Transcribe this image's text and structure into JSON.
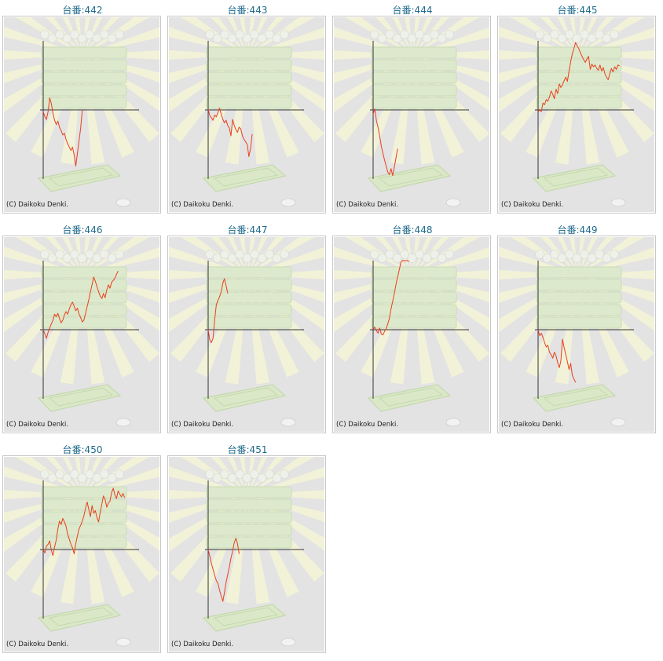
{
  "colors": {
    "title_link": "#1f6a8c",
    "line": "#e8401c",
    "axis": "#333333",
    "panel_bg": "#e3e3e3",
    "frame_border": "#c7c7c7"
  },
  "copyright": "(C) Daikoku Denki.",
  "chart_data": [
    {
      "type": "line",
      "title": "台番:442",
      "x": [
        0,
        1,
        2,
        3,
        4,
        5,
        6,
        7,
        8,
        9,
        10,
        11,
        12,
        13,
        14,
        15,
        16,
        17,
        18,
        19,
        20,
        21,
        22,
        23,
        24
      ],
      "y": [
        -200,
        -800,
        -1100,
        -200,
        1400,
        700,
        -400,
        -1200,
        -1700,
        -1300,
        -2000,
        -2400,
        -2900,
        -2700,
        -3400,
        -3900,
        -4300,
        -4700,
        -4300,
        -5200,
        -6500,
        -5000,
        -3600,
        -2100,
        0
      ],
      "ylim": [
        -8000,
        8000
      ],
      "grid": false
    },
    {
      "type": "line",
      "title": "台番:443",
      "x": [
        0,
        1,
        2,
        3,
        4,
        5,
        6,
        7,
        8,
        9,
        10,
        11,
        12,
        13,
        14,
        15,
        16,
        17,
        18,
        19,
        20,
        21,
        22,
        23,
        24,
        25,
        26,
        27
      ],
      "y": [
        100,
        -700,
        -900,
        -1200,
        -600,
        -800,
        -300,
        200,
        -500,
        -1100,
        -1500,
        -1200,
        -1800,
        -2100,
        -3000,
        -1100,
        -1800,
        -2300,
        -2600,
        -2000,
        -2200,
        -3000,
        -3400,
        -3700,
        -4000,
        -5400,
        -4500,
        -2800
      ],
      "ylim": [
        -8000,
        8000
      ],
      "grid": false
    },
    {
      "type": "line",
      "title": "台番:444",
      "x": [
        0,
        1,
        2,
        3,
        4,
        5,
        6,
        7,
        8,
        9,
        10,
        11,
        12,
        13,
        14,
        15
      ],
      "y": [
        -500,
        100,
        -1200,
        -2000,
        -3000,
        -4200,
        -5000,
        -5800,
        -6500,
        -7200,
        -7500,
        -6800,
        -7600,
        -6600,
        -5600,
        -4500
      ],
      "ylim": [
        -8000,
        8000
      ],
      "grid": false
    },
    {
      "type": "line",
      "title": "台番:445",
      "x": [
        0,
        1,
        2,
        3,
        4,
        5,
        6,
        7,
        8,
        9,
        10,
        11,
        12,
        13,
        14,
        15,
        16,
        17,
        18,
        19,
        20,
        21,
        22,
        23,
        24,
        25,
        26,
        27,
        28,
        29,
        30,
        31,
        32,
        33,
        34,
        35,
        36,
        37,
        38,
        39,
        40,
        41,
        42,
        43,
        44,
        45,
        46,
        47,
        48,
        49,
        50
      ],
      "y": [
        -200,
        0,
        -200,
        800,
        600,
        1200,
        1000,
        1500,
        2200,
        1800,
        1300,
        2400,
        1900,
        3000,
        2600,
        2900,
        3400,
        3800,
        3300,
        4500,
        5600,
        6500,
        7100,
        7800,
        7400,
        7100,
        6600,
        6200,
        5800,
        5500,
        5900,
        6200,
        4700,
        5300,
        5000,
        5200,
        4800,
        4600,
        5200,
        4500,
        4900,
        4200,
        3800,
        3500,
        4200,
        4800,
        4400,
        5000,
        4700,
        5200,
        5100
      ],
      "ylim": [
        -8000,
        8000
      ],
      "grid": false
    },
    {
      "type": "line",
      "title": "台番:446",
      "x": [
        0,
        1,
        2,
        3,
        4,
        5,
        6,
        7,
        8,
        9,
        10,
        11,
        12,
        13,
        14,
        15,
        16,
        17,
        18,
        19,
        20,
        21,
        22,
        23,
        24,
        25,
        26,
        27,
        28,
        29,
        30,
        31,
        32,
        33,
        34,
        35,
        36,
        37,
        38,
        39,
        40,
        41,
        42,
        43,
        44,
        45,
        46
      ],
      "y": [
        0,
        -500,
        -1000,
        -300,
        200,
        700,
        1100,
        1800,
        1500,
        1900,
        1300,
        800,
        1100,
        1700,
        2100,
        1800,
        2400,
        2900,
        3200,
        2700,
        2200,
        2500,
        1800,
        1400,
        900,
        1100,
        1900,
        2700,
        3500,
        4400,
        5200,
        6100,
        5600,
        5000,
        4400,
        3900,
        3600,
        4200,
        3700,
        4600,
        5200,
        4800,
        5500,
        5700,
        6000,
        6400,
        6800
      ],
      "ylim": [
        -8000,
        8000
      ],
      "grid": false
    },
    {
      "type": "line",
      "title": "台番:447",
      "x": [
        0,
        1,
        2,
        3,
        4,
        5,
        6,
        7,
        8,
        9,
        10,
        11,
        12
      ],
      "y": [
        0,
        -1200,
        -1500,
        -1000,
        1200,
        2900,
        3400,
        3800,
        4400,
        5400,
        5900,
        5100,
        4200
      ],
      "ylim": [
        -8000,
        8000
      ],
      "grid": false
    },
    {
      "type": "line",
      "title": "台番:448",
      "x": [
        0,
        1,
        2,
        3,
        4,
        5,
        6,
        7,
        8,
        9,
        10,
        11,
        12,
        13,
        14,
        15,
        16,
        17,
        18,
        19,
        20,
        21,
        22
      ],
      "y": [
        0,
        300,
        -100,
        -400,
        200,
        -500,
        -600,
        -200,
        100,
        700,
        1300,
        2400,
        3300,
        4200,
        5200,
        6100,
        6900,
        7800,
        8000,
        8000,
        8000,
        8000,
        7900
      ],
      "ylim": [
        -8000,
        8000
      ],
      "grid": false
    },
    {
      "type": "line",
      "title": "台番:449",
      "x": [
        0,
        1,
        2,
        3,
        4,
        5,
        6,
        7,
        8,
        9,
        10,
        11,
        12,
        13,
        14,
        15,
        16,
        17,
        18,
        19,
        20,
        21,
        22,
        23
      ],
      "y": [
        0,
        -700,
        -400,
        -900,
        -1500,
        -2000,
        -1800,
        -2600,
        -2900,
        -3300,
        -2600,
        -3000,
        -3800,
        -4400,
        -3600,
        -1100,
        -2100,
        -2900,
        -3700,
        -4600,
        -3900,
        -5300,
        -5700,
        -6100
      ],
      "ylim": [
        -8000,
        8000
      ],
      "grid": false
    },
    {
      "type": "line",
      "title": "台番:450",
      "x": [
        0,
        1,
        2,
        3,
        4,
        5,
        6,
        7,
        8,
        9,
        10,
        11,
        12,
        13,
        14,
        15,
        16,
        17,
        18,
        19,
        20,
        21,
        22,
        23,
        24,
        25,
        26,
        27,
        28,
        29,
        30,
        31,
        32,
        33,
        34,
        35,
        36,
        37,
        38,
        39,
        40,
        41,
        42,
        43,
        44,
        45,
        46,
        47,
        48,
        49,
        50
      ],
      "y": [
        0,
        -400,
        400,
        600,
        1000,
        -100,
        -700,
        300,
        1100,
        2400,
        3300,
        2900,
        3600,
        3200,
        2700,
        1800,
        1200,
        600,
        200,
        -500,
        700,
        1600,
        2400,
        2800,
        3300,
        3900,
        4800,
        5500,
        4600,
        3800,
        5100,
        4200,
        4500,
        3700,
        3200,
        4300,
        5300,
        6200,
        5800,
        4900,
        5400,
        5600,
        6600,
        7100,
        6300,
        5900,
        6800,
        6400,
        6100,
        6500,
        6000
      ],
      "ylim": [
        -8000,
        8000
      ],
      "grid": false
    },
    {
      "type": "line",
      "title": "台番:451",
      "x": [
        0,
        1,
        2,
        3,
        4,
        5,
        6,
        7,
        8,
        9,
        10,
        11,
        12,
        13,
        14,
        15,
        16,
        17,
        18,
        19
      ],
      "y": [
        0,
        -800,
        -1600,
        -2300,
        -3000,
        -3600,
        -3900,
        -4700,
        -5400,
        -6000,
        -5000,
        -3800,
        -2900,
        -2000,
        -1000,
        -200,
        800,
        1300,
        700,
        -500
      ],
      "ylim": [
        -8000,
        8000
      ],
      "grid": false
    }
  ]
}
